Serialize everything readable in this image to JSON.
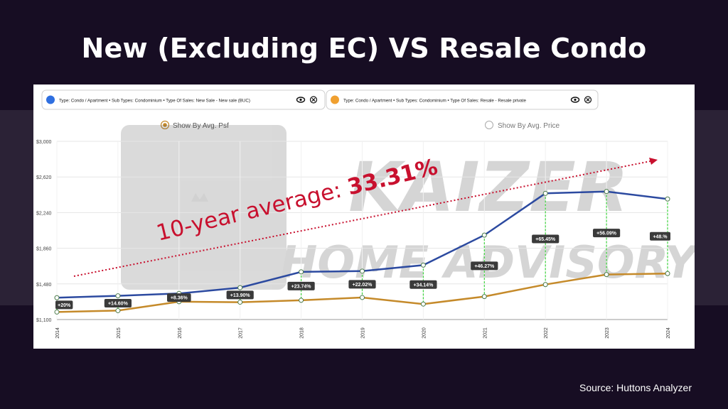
{
  "page": {
    "title": "New (Excluding EC) VS Resale Condo",
    "source": "Source: Huttons Analyzer"
  },
  "colors": {
    "background": "#170d23",
    "band": "#2b2236",
    "new_sale": "#2c4aa0",
    "resale": "#c58a2a",
    "annotation": "#c8102e",
    "diff_line": "#3bd43b",
    "badge": "#3a3a3a"
  },
  "filters": [
    {
      "label": "Type: Condo / Apartment • Sub Types: Condominium • Type Of Sales: New Sale - New sale (BUC)",
      "dot_color": "#2f6fe0"
    },
    {
      "label": "Type: Condo / Apartment • Sub Types: Condominium • Type Of Sales: Resale - Resale private",
      "dot_color": "#f0a030"
    }
  ],
  "options": [
    {
      "label": "Show By Avg. Psf",
      "selected": true
    },
    {
      "label": "Show By Avg. Price",
      "selected": false
    }
  ],
  "annotation": {
    "prefix": "10-year average: ",
    "value": "33.31%"
  },
  "watermark": {
    "line1": "KAIZER",
    "line2": "HOME ADVISORY"
  },
  "chart_data": {
    "type": "line",
    "x": [
      "2014",
      "2015",
      "2016",
      "2017",
      "2018",
      "2019",
      "2020",
      "2021",
      "2022",
      "2023",
      "2024"
    ],
    "ylim": [
      1100,
      3000
    ],
    "yticks": [
      "$1,100",
      "$1,480",
      "$1,860",
      "$2,240",
      "$2,620",
      "$3,000"
    ],
    "grid": true,
    "series": [
      {
        "values": [
          1333,
          1353,
          1378,
          1440,
          1608,
          1616,
          1680,
          2000,
          2445,
          2465,
          2385
        ]
      },
      {
        "values": [
          1180,
          1195,
          1290,
          1285,
          1305,
          1335,
          1265,
          1345,
          1473,
          1580,
          1590
        ]
      }
    ],
    "diff_labels": [
      "+20%",
      "+14.60%",
      "+8.36%",
      "+13.90%",
      "+23.74%",
      "+22.02%",
      "+34.14%",
      "+46.27%",
      "+65.45%",
      "+56.09%",
      "+48.%"
    ]
  }
}
